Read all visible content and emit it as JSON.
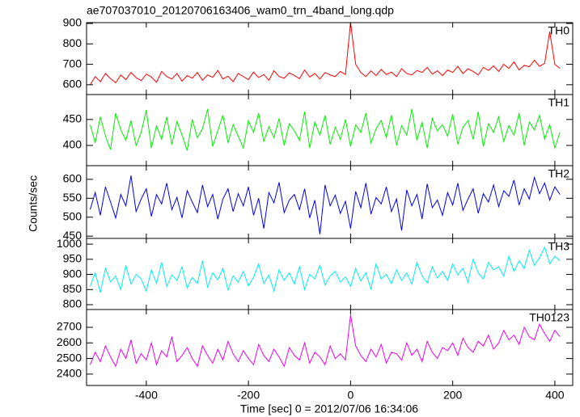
{
  "chart_data": {
    "type": "line",
    "title": "ae707037010_20120706163406_wam0_trn_4band_long.qdp",
    "x_label": "Time [sec] 0 = 2012/07/06 16:34:06",
    "y_label": "Counts/sec",
    "xlim": [
      -517,
      435
    ],
    "xticks": [
      -400,
      -200,
      0,
      200,
      400
    ],
    "x": [
      -510,
      -500,
      -490,
      -480,
      -470,
      -460,
      -450,
      -440,
      -430,
      -420,
      -410,
      -400,
      -390,
      -380,
      -370,
      -360,
      -350,
      -340,
      -330,
      -320,
      -310,
      -300,
      -290,
      -280,
      -270,
      -260,
      -250,
      -240,
      -230,
      -220,
      -210,
      -200,
      -190,
      -180,
      -170,
      -160,
      -150,
      -140,
      -130,
      -120,
      -110,
      -100,
      -90,
      -80,
      -70,
      -60,
      -50,
      -40,
      -30,
      -20,
      -10,
      0,
      10,
      20,
      30,
      40,
      50,
      60,
      70,
      80,
      90,
      100,
      110,
      120,
      130,
      140,
      150,
      160,
      170,
      180,
      190,
      200,
      210,
      220,
      230,
      240,
      250,
      260,
      270,
      280,
      290,
      300,
      310,
      320,
      330,
      340,
      350,
      360,
      370,
      380,
      390,
      400,
      410
    ],
    "series": [
      {
        "name": "TH0",
        "color": "#ff0000",
        "ylim": [
          552,
          904
        ],
        "yticks": [
          600,
          700,
          800,
          900
        ],
        "values": [
          600,
          640,
          615,
          655,
          630,
          610,
          648,
          625,
          660,
          635,
          620,
          652,
          638,
          612,
          665,
          640,
          628,
          655,
          618,
          645,
          632,
          660,
          622,
          648,
          636,
          670,
          628,
          642,
          615,
          655,
          640,
          625,
          662,
          635,
          650,
          622,
          668,
          640,
          632,
          658,
          645,
          630,
          672,
          638,
          655,
          628,
          660,
          648,
          640,
          665,
          650,
          905,
          700,
          660,
          640,
          668,
          645,
          675,
          650,
          662,
          640,
          678,
          655,
          648,
          670,
          660,
          685,
          652,
          668,
          645,
          672,
          660,
          690,
          655,
          678,
          665,
          648,
          685,
          670,
          692,
          665,
          700,
          680,
          712,
          672,
          695,
          688,
          720,
          690,
          705,
          860,
          700,
          680
        ]
      },
      {
        "name": "TH1",
        "color": "#00ee00",
        "ylim": [
          361,
          498
        ],
        "yticks": [
          400,
          450
        ],
        "values": [
          440,
          405,
          455,
          418,
          392,
          462,
          430,
          410,
          448,
          400,
          425,
          468,
          395,
          438,
          412,
          455,
          402,
          446,
          420,
          390,
          450,
          415,
          432,
          470,
          398,
          428,
          458,
          405,
          440,
          418,
          395,
          448,
          425,
          462,
          408,
          436,
          415,
          452,
          400,
          442,
          428,
          410,
          465,
          395,
          445,
          420,
          458,
          402,
          435,
          412,
          450,
          398,
          440,
          425,
          462,
          405,
          432,
          448,
          415,
          458,
          400,
          438,
          420,
          470,
          410,
          445,
          395,
          452,
          428,
          440,
          418,
          460,
          402,
          435,
          448,
          412,
          465,
          398,
          442,
          425,
          455,
          408,
          438,
          420,
          462,
          400,
          445,
          430,
          458,
          412,
          440,
          395,
          425
        ]
      },
      {
        "name": "TH2",
        "color": "#0000ee",
        "ylim": [
          444,
          636
        ],
        "yticks": [
          450,
          500,
          550,
          600
        ],
        "values": [
          520,
          565,
          505,
          580,
          540,
          498,
          560,
          530,
          610,
          515,
          548,
          575,
          502,
          560,
          535,
          590,
          520,
          552,
          498,
          570,
          540,
          512,
          585,
          528,
          560,
          495,
          548,
          575,
          515,
          562,
          530,
          580,
          505,
          550,
          470,
          565,
          538,
          592,
          512,
          545,
          560,
          520,
          575,
          498,
          545,
          455,
          585,
          530,
          558,
          510,
          542,
          470,
          568,
          525,
          590,
          508,
          552,
          535,
          580,
          515,
          548,
          465,
          572,
          530,
          560,
          495,
          588,
          525,
          545,
          505,
          565,
          532,
          590,
          518,
          548,
          575,
          510,
          562,
          540,
          585,
          528,
          570,
          555,
          598,
          532,
          575,
          548,
          605,
          562,
          590,
          545,
          580,
          560
        ]
      },
      {
        "name": "TH3",
        "color": "#00eeee",
        "ylim": [
          784,
          1019
        ],
        "yticks": [
          800,
          850,
          900,
          950,
          1000
        ],
        "values": [
          860,
          905,
          840,
          920,
          875,
          895,
          850,
          930,
          868,
          900,
          885,
          845,
          915,
          870,
          940,
          860,
          898,
          880,
          925,
          855,
          890,
          870,
          945,
          858,
          905,
          882,
          920,
          848,
          895,
          875,
          910,
          862,
          890,
          935,
          870,
          898,
          845,
          915,
          880,
          905,
          868,
          925,
          850,
          900,
          885,
          930,
          865,
          895,
          910,
          875,
          892,
          860,
          920,
          878,
          905,
          852,
          935,
          885,
          900,
          870,
          915,
          880,
          905,
          868,
          940,
          895,
          872,
          925,
          888,
          910,
          880,
          935,
          898,
          920,
          875,
          950,
          905,
          885,
          940,
          915,
          925,
          895,
          960,
          910,
          945,
          920,
          980,
          930,
          955,
          990,
          935,
          960,
          945
        ]
      },
      {
        "name": "TH0123",
        "color": "#ee00ee",
        "ylim": [
          2327,
          2814
        ],
        "yticks": [
          2400,
          2500,
          2600,
          2700
        ],
        "values": [
          2460,
          2540,
          2480,
          2580,
          2510,
          2450,
          2560,
          2500,
          2620,
          2470,
          2530,
          2490,
          2600,
          2460,
          2550,
          2510,
          2640,
          2480,
          2520,
          2570,
          2500,
          2450,
          2580,
          2520,
          2470,
          2560,
          2490,
          2610,
          2530,
          2480,
          2550,
          2500,
          2460,
          2590,
          2520,
          2480,
          2560,
          2510,
          2450,
          2570,
          2520,
          2490,
          2600,
          2470,
          2540,
          2510,
          2460,
          2580,
          2500,
          2530,
          2490,
          2780,
          2580,
          2520,
          2480,
          2560,
          2510,
          2590,
          2470,
          2540,
          2530,
          2490,
          2600,
          2520,
          2560,
          2480,
          2610,
          2540,
          2500,
          2570,
          2550,
          2600,
          2520,
          2630,
          2570,
          2540,
          2610,
          2580,
          2650,
          2560,
          2600,
          2680,
          2620,
          2650,
          2590,
          2700,
          2640,
          2620,
          2720,
          2660,
          2610,
          2680,
          2640
        ]
      }
    ]
  }
}
